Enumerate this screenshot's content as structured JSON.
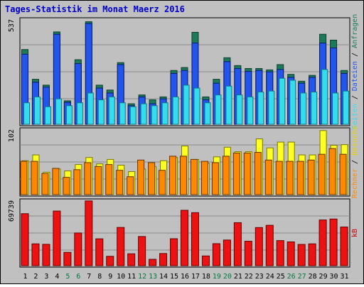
{
  "title": "Tages-Statistik im Monat Maerz 2016",
  "chart_data": [
    {
      "type": "bar",
      "panel": "top",
      "ymax_label": "537",
      "ylim": [
        0,
        537
      ],
      "categories": [
        "1",
        "2",
        "3",
        "4",
        "5",
        "6",
        "7",
        "8",
        "9",
        "10",
        "11",
        "12",
        "13",
        "14",
        "15",
        "16",
        "17",
        "18",
        "19",
        "20",
        "21",
        "22",
        "23",
        "24",
        "25",
        "26",
        "27",
        "28",
        "29",
        "30",
        "31"
      ],
      "weekend_days": [
        "5",
        "6",
        "12",
        "13",
        "19",
        "20",
        "26",
        "27"
      ],
      "side_label_parts": [
        {
          "text": "Seiten",
          "color": "#33ddee"
        },
        {
          "text": " / ",
          "color": "#000000"
        },
        {
          "text": "Dateien",
          "color": "#2255ee"
        },
        {
          "text": " / ",
          "color": "#000000"
        },
        {
          "text": "Anfragen",
          "color": "#1b7a5a"
        }
      ],
      "series": [
        {
          "name": "Anfragen",
          "color": "#1b7a5a",
          "values": [
            382,
            230,
            200,
            472,
            120,
            330,
            524,
            200,
            175,
            315,
            105,
            150,
            125,
            140,
            275,
            290,
            470,
            140,
            230,
            340,
            300,
            285,
            285,
            278,
            305,
            255,
            220,
            250,
            460,
            430,
            275
          ]
        },
        {
          "name": "Dateien",
          "color": "#2255ee",
          "values": [
            358,
            215,
            190,
            460,
            112,
            310,
            515,
            185,
            160,
            305,
            95,
            140,
            105,
            130,
            260,
            275,
            415,
            125,
            210,
            320,
            285,
            270,
            275,
            268,
            280,
            240,
            210,
            240,
            415,
            390,
            260
          ]
        },
        {
          "name": "Seiten",
          "color": "#33ddee",
          "values": [
            110,
            140,
            90,
            130,
            95,
            110,
            160,
            125,
            140,
            110,
            90,
            105,
            95,
            110,
            140,
            200,
            185,
            110,
            150,
            195,
            150,
            140,
            165,
            170,
            235,
            225,
            160,
            165,
            280,
            160,
            170
          ]
        }
      ]
    },
    {
      "type": "bar",
      "panel": "middle",
      "ymax_label": "102",
      "ylim": [
        0,
        102
      ],
      "side_label_parts": [
        {
          "text": "Rechner",
          "color": "#ff8800"
        },
        {
          "text": " / ",
          "color": "#000000"
        },
        {
          "text": "Besuche",
          "color": "#e8d000"
        }
      ],
      "series": [
        {
          "name": "Besuche",
          "color": "#ffff22",
          "values": [
            53,
            62,
            35,
            40,
            37,
            47,
            58,
            48,
            55,
            46,
            36,
            40,
            44,
            53,
            58,
            76,
            55,
            49,
            59,
            74,
            67,
            67,
            87,
            73,
            82,
            82,
            62,
            62,
            100,
            77,
            78
          ]
        },
        {
          "name": "Rechner",
          "color": "#ff8800",
          "values": [
            52,
            52,
            33,
            41,
            27,
            39,
            50,
            44,
            47,
            38,
            28,
            54,
            50,
            38,
            60,
            60,
            55,
            52,
            50,
            60,
            65,
            65,
            66,
            54,
            52,
            52,
            52,
            54,
            63,
            72,
            63
          ]
        }
      ]
    },
    {
      "type": "bar",
      "panel": "bottom",
      "ymax_label": "69739",
      "ylim": [
        0,
        69739
      ],
      "side_label_parts": [
        {
          "text": "kB",
          "color": "#cc0000"
        }
      ],
      "series": [
        {
          "name": "kB",
          "color": "#ee1111",
          "values": [
            55500,
            23300,
            22800,
            58300,
            14200,
            34900,
            69100,
            28700,
            10000,
            40800,
            12700,
            31100,
            6800,
            13000,
            28800,
            59100,
            56600,
            10400,
            23500,
            27400,
            45900,
            26100,
            40700,
            43100,
            26800,
            25400,
            22700,
            23300,
            48800,
            49800,
            41300
          ]
        }
      ]
    }
  ]
}
